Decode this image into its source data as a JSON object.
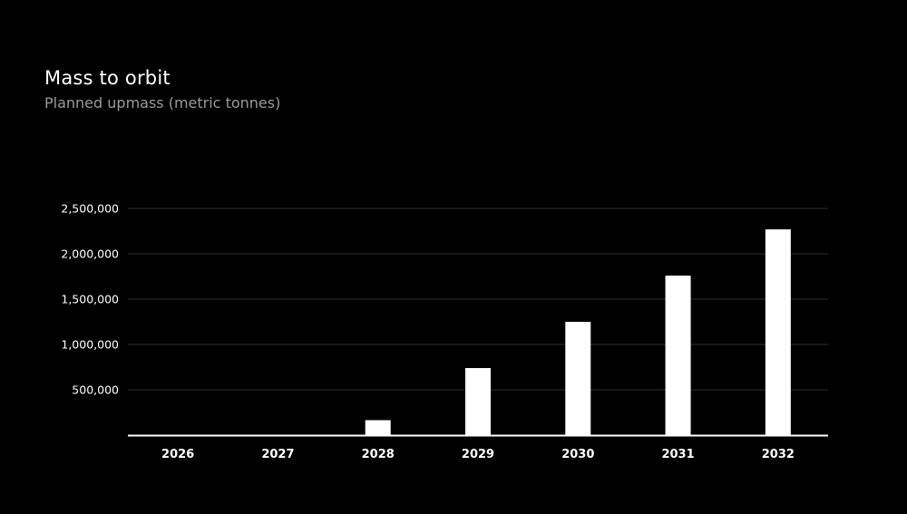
{
  "chart_data": {
    "type": "bar",
    "title": "Mass to orbit",
    "subtitle": "Planned upmass (metric tonnes)",
    "xlabel": "",
    "ylabel": "",
    "categories": [
      "2026",
      "2027",
      "2028",
      "2029",
      "2030",
      "2031",
      "2032"
    ],
    "values": [
      0,
      0,
      165000,
      740000,
      1250000,
      1760000,
      2270000
    ],
    "ylim": [
      0,
      2500000
    ],
    "yticks": [
      500000,
      1000000,
      1500000,
      2000000,
      2500000
    ],
    "ytick_labels": [
      "500,000",
      "1,000,000",
      "1,500,000",
      "2,000,000",
      "2,500,000"
    ],
    "grid": true,
    "legend": "none",
    "colors": {
      "background": "#000000",
      "bar": "#ffffff",
      "grid": "#2e2e2e",
      "axis": "#ffffff",
      "title": "#ffffff",
      "subtitle": "#9a9a9a"
    }
  }
}
